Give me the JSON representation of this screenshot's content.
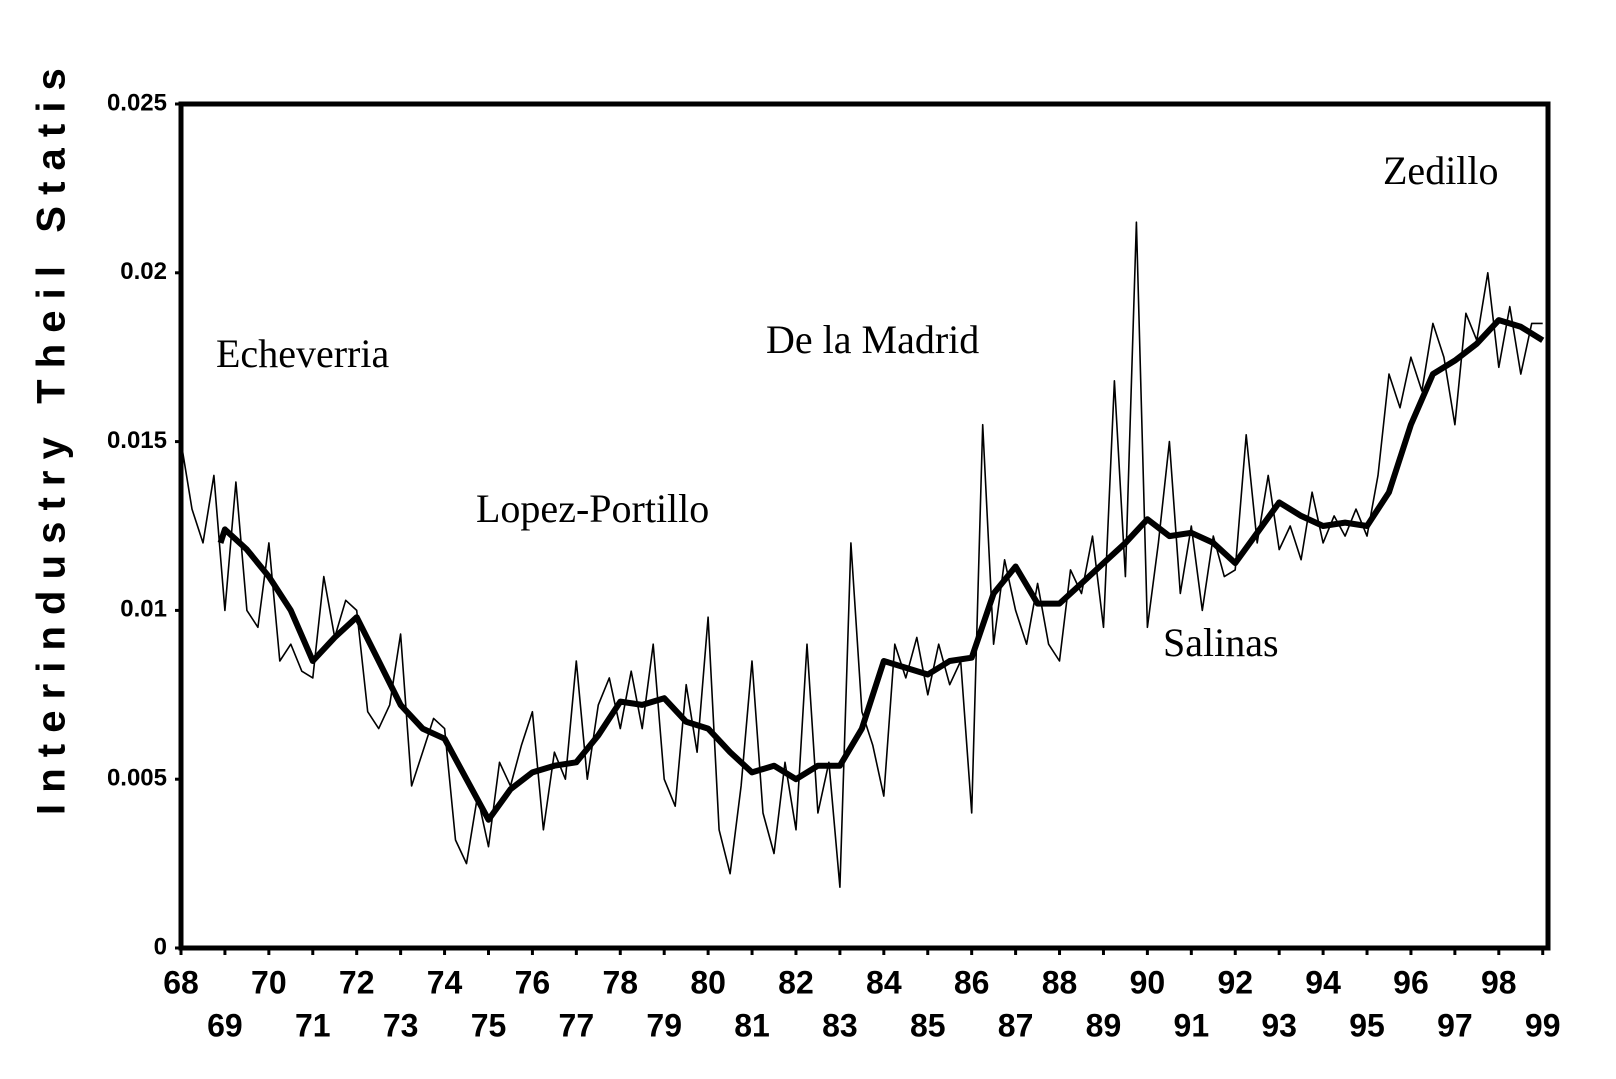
{
  "chart_data": {
    "type": "line",
    "y_label": "I n t e r i n d u s t r y   T h e i l   S t a t i s",
    "annotations": [
      "Echeverria",
      "Lopez-Portillo",
      "De la Madrid",
      "Salinas",
      "Zedillo"
    ],
    "xlim": [
      68,
      99.12
    ],
    "xticks": [
      68,
      69,
      70,
      71,
      72,
      73,
      74,
      75,
      76,
      77,
      78,
      79,
      80,
      81,
      82,
      83,
      84,
      85,
      86,
      87,
      88,
      89,
      90,
      91,
      92,
      93,
      94,
      95,
      96,
      97,
      98,
      99
    ],
    "ylim": [
      0,
      0.025
    ],
    "yticks": [
      0,
      0.005,
      0.01,
      0.015,
      0.02,
      0.025
    ],
    "series": [
      {
        "color": "#000000",
        "x": [
          68,
          68.25,
          68.5,
          68.75,
          69,
          69.25,
          69.5,
          69.75,
          70,
          70.25,
          70.5,
          70.75,
          71,
          71.25,
          71.5,
          71.75,
          72,
          72.25,
          72.5,
          72.75,
          73,
          73.25,
          73.5,
          73.75,
          74,
          74.25,
          74.5,
          74.75,
          75,
          75.25,
          75.5,
          75.75,
          76,
          76.25,
          76.5,
          76.75,
          77,
          77.25,
          77.5,
          77.75,
          78,
          78.25,
          78.5,
          78.75,
          79,
          79.25,
          79.5,
          79.75,
          80,
          80.25,
          80.5,
          80.75,
          81,
          81.25,
          81.5,
          81.75,
          82,
          82.25,
          82.5,
          82.75,
          83,
          83.25,
          83.5,
          83.75,
          84,
          84.25,
          84.5,
          84.75,
          85,
          85.25,
          85.5,
          85.75,
          86,
          86.25,
          86.5,
          86.75,
          87,
          87.25,
          87.5,
          87.75,
          88,
          88.25,
          88.5,
          88.75,
          89,
          89.25,
          89.5,
          89.75,
          90,
          90.25,
          90.5,
          90.75,
          91,
          91.25,
          91.5,
          91.75,
          92,
          92.25,
          92.5,
          92.75,
          93,
          93.25,
          93.5,
          93.75,
          94,
          94.25,
          94.5,
          94.75,
          95,
          95.25,
          95.5,
          95.75,
          96,
          96.25,
          96.5,
          96.75,
          97,
          97.25,
          97.5,
          97.75,
          98,
          98.25,
          98.5,
          98.75,
          99
        ],
        "values": [
          0.015,
          0.013,
          0.012,
          0.014,
          0.01,
          0.0138,
          0.01,
          0.0095,
          0.012,
          0.0085,
          0.009,
          0.0082,
          0.008,
          0.011,
          0.0092,
          0.0103,
          0.01,
          0.007,
          0.0065,
          0.0072,
          0.0093,
          0.0048,
          0.0058,
          0.0068,
          0.0065,
          0.0032,
          0.0025,
          0.0045,
          0.003,
          0.0055,
          0.0048,
          0.006,
          0.007,
          0.0035,
          0.0058,
          0.005,
          0.0085,
          0.005,
          0.0072,
          0.008,
          0.0065,
          0.0082,
          0.0065,
          0.009,
          0.005,
          0.0042,
          0.0078,
          0.0058,
          0.0098,
          0.0035,
          0.0022,
          0.0048,
          0.0085,
          0.004,
          0.0028,
          0.0055,
          0.0035,
          0.009,
          0.004,
          0.0055,
          0.0018,
          0.012,
          0.007,
          0.006,
          0.0045,
          0.009,
          0.008,
          0.0092,
          0.0075,
          0.009,
          0.0078,
          0.0085,
          0.004,
          0.0155,
          0.009,
          0.0115,
          0.01,
          0.009,
          0.0108,
          0.009,
          0.0085,
          0.0112,
          0.0105,
          0.0122,
          0.0095,
          0.0168,
          0.011,
          0.0215,
          0.0095,
          0.012,
          0.015,
          0.0105,
          0.0125,
          0.01,
          0.0122,
          0.011,
          0.0112,
          0.0152,
          0.012,
          0.014,
          0.0118,
          0.0125,
          0.0115,
          0.0135,
          0.012,
          0.0128,
          0.0122,
          0.013,
          0.0122,
          0.014,
          0.017,
          0.016,
          0.0175,
          0.0165,
          0.0185,
          0.0175,
          0.0155,
          0.0188,
          0.018,
          0.02,
          0.0172,
          0.019,
          0.017,
          0.0185,
          0.0185
        ]
      },
      {
        "color": "#000000",
        "x": [
          68.9,
          69,
          69.5,
          70,
          70.5,
          71,
          71.5,
          72,
          72.5,
          73,
          73.5,
          74,
          74.5,
          75,
          75.5,
          76,
          76.5,
          77,
          77.5,
          78,
          78.5,
          79,
          79.5,
          80,
          80.5,
          81,
          81.5,
          82,
          82.5,
          83,
          83.5,
          84,
          84.5,
          85,
          85.5,
          86,
          86.5,
          87,
          87.5,
          88,
          88.5,
          89,
          89.5,
          90,
          90.5,
          91,
          91.5,
          92,
          92.5,
          93,
          93.5,
          94,
          94.5,
          95,
          95.5,
          96,
          96.5,
          97,
          97.5,
          98,
          98.5,
          99
        ],
        "values": [
          0.012,
          0.0124,
          0.0118,
          0.011,
          0.01,
          0.0085,
          0.0092,
          0.0098,
          0.0085,
          0.0072,
          0.0065,
          0.0062,
          0.005,
          0.0038,
          0.0047,
          0.0052,
          0.0054,
          0.0055,
          0.0063,
          0.0073,
          0.0072,
          0.0074,
          0.0067,
          0.0065,
          0.0058,
          0.0052,
          0.0054,
          0.005,
          0.0054,
          0.0054,
          0.0065,
          0.0085,
          0.0083,
          0.0081,
          0.0085,
          0.0086,
          0.0105,
          0.0113,
          0.0102,
          0.0102,
          0.0108,
          0.0114,
          0.012,
          0.0127,
          0.0122,
          0.0123,
          0.012,
          0.0114,
          0.0123,
          0.0132,
          0.0128,
          0.0125,
          0.0126,
          0.0125,
          0.0135,
          0.0155,
          0.017,
          0.0174,
          0.0179,
          0.0186,
          0.0184,
          0.018
        ]
      }
    ]
  }
}
